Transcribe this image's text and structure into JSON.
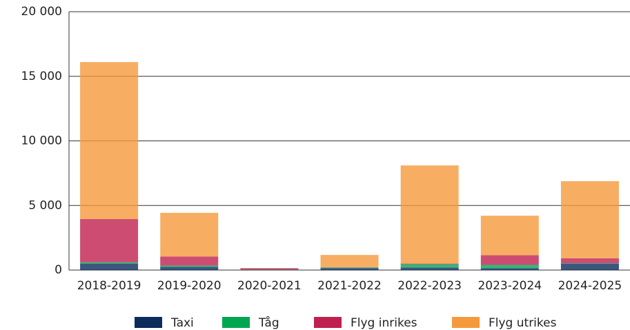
{
  "chart_data": {
    "type": "stacked-bar",
    "categories": [
      "2018-2019",
      "2019-2020",
      "2020-2021",
      "2021-2022",
      "2022-2023",
      "2023-2024",
      "2024-2025"
    ],
    "series": [
      {
        "name": "Taxi",
        "color": "#0a2d5c",
        "values": [
          500,
          250,
          30,
          150,
          200,
          150,
          500
        ]
      },
      {
        "name": "Tåg",
        "color": "#00a650",
        "values": [
          100,
          100,
          10,
          50,
          250,
          250,
          30
        ]
      },
      {
        "name": "Flyg inrikes",
        "color": "#c0204f",
        "values": [
          3350,
          700,
          100,
          20,
          50,
          750,
          380
        ]
      },
      {
        "name": "Flyg utrikes",
        "color": "#f59a3c",
        "values": [
          12150,
          3380,
          20,
          950,
          7600,
          3060,
          5970
        ]
      }
    ],
    "ylim": [
      0,
      20000
    ],
    "yticks": [
      0,
      {
        "value": 5000,
        "label": "5 000"
      },
      {
        "value": 10000,
        "label": "10 000"
      },
      {
        "value": 15000,
        "label": "15 000"
      },
      {
        "value": 20000,
        "label": "20 000"
      }
    ],
    "grid": true,
    "legend": "bottom"
  }
}
